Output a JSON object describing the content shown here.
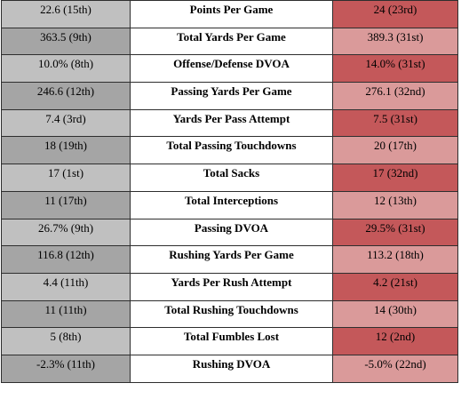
{
  "colors": {
    "left_light": "#c0c0c0",
    "left_dark": "#a5a5a5",
    "right_light": "#da9a9a",
    "right_dark": "#c4585a",
    "label_bg": "#ffffff",
    "border": "#2e2e2e"
  },
  "rows": [
    {
      "left": "22.6 (15th)",
      "label": "Points Per Game",
      "right": "24 (23rd)",
      "left_shade": "light",
      "right_shade": "dark"
    },
    {
      "left": "363.5 (9th)",
      "label": "Total Yards Per Game",
      "right": "389.3 (31st)",
      "left_shade": "dark",
      "right_shade": "light"
    },
    {
      "left": "10.0% (8th)",
      "label": "Offense/Defense DVOA",
      "right": "14.0% (31st)",
      "left_shade": "light",
      "right_shade": "dark"
    },
    {
      "left": "246.6 (12th)",
      "label": "Passing Yards Per Game",
      "right": "276.1 (32nd)",
      "left_shade": "dark",
      "right_shade": "light"
    },
    {
      "left": "7.4 (3rd)",
      "label": "Yards Per Pass Attempt",
      "right": "7.5 (31st)",
      "left_shade": "light",
      "right_shade": "dark"
    },
    {
      "left": "18 (19th)",
      "label": "Total Passing Touchdowns",
      "right": "20 (17th)",
      "left_shade": "dark",
      "right_shade": "light"
    },
    {
      "left": "17 (1st)",
      "label": "Total Sacks",
      "right": "17 (32nd)",
      "left_shade": "light",
      "right_shade": "dark"
    },
    {
      "left": "11 (17th)",
      "label": "Total Interceptions",
      "right": "12 (13th)",
      "left_shade": "dark",
      "right_shade": "light"
    },
    {
      "left": "26.7% (9th)",
      "label": "Passing DVOA",
      "right": "29.5% (31st)",
      "left_shade": "light",
      "right_shade": "dark"
    },
    {
      "left": "116.8 (12th)",
      "label": "Rushing Yards Per Game",
      "right": "113.2 (18th)",
      "left_shade": "dark",
      "right_shade": "light"
    },
    {
      "left": "4.4 (11th)",
      "label": "Yards Per Rush Attempt",
      "right": "4.2 (21st)",
      "left_shade": "light",
      "right_shade": "dark"
    },
    {
      "left": "11 (11th)",
      "label": "Total Rushing Touchdowns",
      "right": "14 (30th)",
      "left_shade": "dark",
      "right_shade": "light"
    },
    {
      "left": "5 (8th)",
      "label": "Total Fumbles Lost",
      "right": "12 (2nd)",
      "left_shade": "light",
      "right_shade": "dark"
    },
    {
      "left": "-2.3% (11th)",
      "label": "Rushing DVOA",
      "right": "-5.0% (22nd)",
      "left_shade": "dark",
      "right_shade": "light"
    }
  ]
}
